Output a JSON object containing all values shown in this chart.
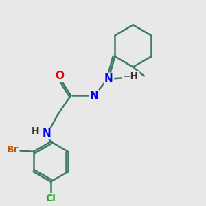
{
  "background_color": "#e8e8e8",
  "bond_color": "#3a7a6a",
  "bond_width": 1.8,
  "atom_colors": {
    "N": "#0000ee",
    "O": "#dd0000",
    "Br": "#cc5500",
    "Cl": "#22aa22",
    "C": "#000000",
    "H": "#333333"
  },
  "font_size": 11,
  "figsize": [
    3.0,
    3.0
  ],
  "dpi": 100
}
